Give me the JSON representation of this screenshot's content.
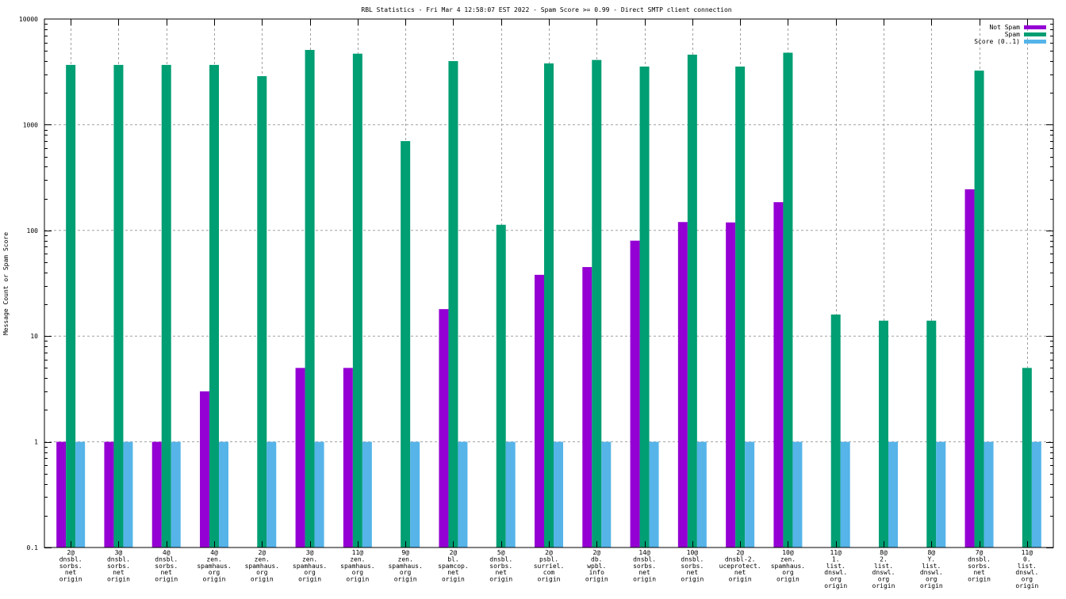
{
  "chart_data": {
    "type": "bar",
    "title": "RBL Statistics - Fri Mar  4 12:58:07 EST 2022 - Spam Score >= 0.99 - Direct SMTP client connection",
    "xlabel": "",
    "ylabel": "Message Count or Spam Score",
    "yscale": "log",
    "ylim": [
      0.1,
      10000
    ],
    "yticks": [
      "0.1",
      "1",
      "10",
      "100",
      "1000",
      "10000"
    ],
    "ytick_values": [
      0.1,
      1,
      10,
      100,
      1000,
      10000
    ],
    "grid": true,
    "legend_position": "top-right",
    "categories": [
      [
        "2@",
        "dnsbl.",
        "sorbs.",
        "net",
        "origin"
      ],
      [
        "3@",
        "dnsbl.",
        "sorbs.",
        "net",
        "origin"
      ],
      [
        "4@",
        "dnsbl.",
        "sorbs.",
        "net",
        "origin"
      ],
      [
        "4@",
        "zen.",
        "spamhaus.",
        "org",
        "origin"
      ],
      [
        "2@",
        "zen.",
        "spamhaus.",
        "org",
        "origin"
      ],
      [
        "3@",
        "zen.",
        "spamhaus.",
        "org",
        "origin"
      ],
      [
        "11@",
        "zen.",
        "spamhaus.",
        "org",
        "origin"
      ],
      [
        "9@",
        "zen.",
        "spamhaus.",
        "org",
        "origin"
      ],
      [
        "2@",
        "bl.",
        "spamcop.",
        "net",
        "origin"
      ],
      [
        "5@",
        "dnsbl.",
        "sorbs.",
        "net",
        "origin"
      ],
      [
        "2@",
        "psbl.",
        "surriel.",
        "com",
        "origin"
      ],
      [
        "2@",
        "db.",
        "wpbl.",
        "info",
        "origin"
      ],
      [
        "14@",
        "dnsbl.",
        "sorbs.",
        "net",
        "origin"
      ],
      [
        "10@",
        "dnsbl.",
        "sorbs.",
        "net",
        "origin"
      ],
      [
        "2@",
        "dnsbl-2.",
        "uceprotect.",
        "net",
        "origin"
      ],
      [
        "10@",
        "zen.",
        "spamhaus.",
        "org",
        "origin"
      ],
      [
        "11@",
        "1.",
        "list.",
        "dnswl.",
        "org",
        "origin"
      ],
      [
        "8@",
        "2.",
        "list.",
        "dnswl.",
        "org",
        "origin"
      ],
      [
        "8@",
        "Y.",
        "list.",
        "dnswl.",
        "org",
        "origin"
      ],
      [
        "7@",
        "dnsbl.",
        "sorbs.",
        "net",
        "origin"
      ],
      [
        "11@",
        "0.",
        "list.",
        "dnswl.",
        "org",
        "origin"
      ]
    ],
    "series": [
      {
        "name": "Not Spam",
        "color": "#9400d3",
        "values": [
          1,
          1,
          1,
          3,
          0,
          5,
          5,
          0,
          18,
          0,
          38,
          45,
          80,
          120,
          119,
          185,
          0,
          0,
          0,
          245,
          0
        ]
      },
      {
        "name": "Spam",
        "color": "#009e73",
        "values": [
          3680,
          3680,
          3680,
          3680,
          2880,
          5100,
          4700,
          700,
          4000,
          113,
          3800,
          4100,
          3550,
          4600,
          3550,
          4800,
          16,
          14,
          14,
          3250,
          5
        ]
      },
      {
        "name": "Score (0..1)",
        "color": "#56b4e9",
        "values": [
          1,
          1,
          1,
          1,
          1,
          1,
          1,
          1,
          1,
          1,
          1,
          1,
          1,
          1,
          1,
          1,
          1,
          1,
          1,
          1,
          1
        ]
      }
    ]
  }
}
